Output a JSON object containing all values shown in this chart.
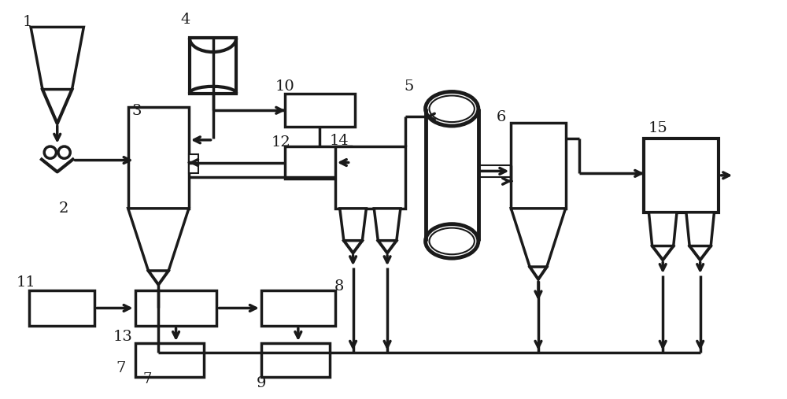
{
  "bg_color": "#ffffff",
  "lc": "#1a1a1a",
  "lw": 2.5,
  "lw_thin": 1.5,
  "figsize": [
    10.0,
    5.07
  ],
  "dpi": 100
}
